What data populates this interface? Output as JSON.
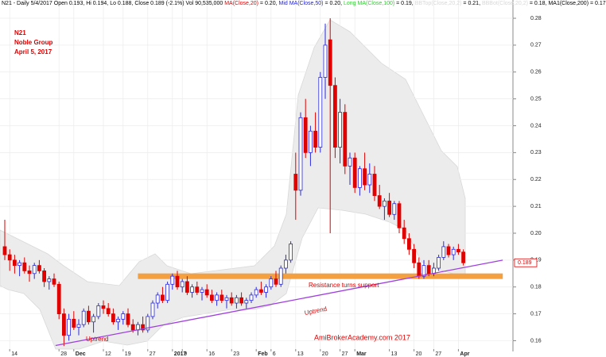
{
  "header": [
    {
      "text": "N21 - Daily 5/4/2017 Open 0.193, Hi 0.194, Lo 0.188, Close 0.189 (-2.1%) Vol 90,535,000 ",
      "color": "#000000"
    },
    {
      "text": "MA(Close,20)",
      "color": "#e00000"
    },
    {
      "text": " = 0.20, ",
      "color": "#000000"
    },
    {
      "text": "Mid MA(Close,50)",
      "color": "#2020e0"
    },
    {
      "text": " = 0.20, ",
      "color": "#000000"
    },
    {
      "text": "Long MA(Close,100)",
      "color": "#33cc33"
    },
    {
      "text": " = 0.19, ",
      "color": "#000000"
    },
    {
      "text": "BBTop(Close,20,2)",
      "color": "#d8d8d8"
    },
    {
      "text": " = 0.21, ",
      "color": "#000000"
    },
    {
      "text": "BBBot(Close,20,2)",
      "color": "#d8d8d8"
    },
    {
      "text": " = 0.18, MA1(Close,200) = 0.17",
      "color": "#000000"
    }
  ],
  "chart_data": {
    "type": "candlestick",
    "title": "N21",
    "subtitle": [
      "Noble Group",
      "April 5, 2017"
    ],
    "categories": [
      null,
      "14",
      null,
      null,
      null,
      null,
      null,
      null,
      null,
      null,
      null,
      "28",
      null,
      null,
      "Dec",
      null,
      null,
      null,
      null,
      null,
      "12",
      null,
      null,
      null,
      "19",
      null,
      null,
      null,
      null,
      "27",
      null,
      null,
      null,
      null,
      "2017",
      null,
      "9",
      null,
      null,
      null,
      null,
      "16",
      null,
      null,
      null,
      null,
      "23",
      null,
      null,
      null,
      null,
      "Feb",
      null,
      null,
      "6",
      null,
      null,
      null,
      null,
      "13",
      null,
      null,
      null,
      null,
      "20",
      null,
      null,
      null,
      "27",
      null,
      null,
      "Mar",
      null,
      null,
      null,
      null,
      null,
      null,
      "13",
      null,
      null,
      null,
      null,
      "20",
      null,
      null,
      null,
      "27",
      null,
      null,
      null,
      null,
      "Apr",
      null
    ],
    "ohlc": [
      [
        0.195,
        0.205,
        0.19,
        0.192
      ],
      [
        0.192,
        0.194,
        0.186,
        0.19
      ],
      [
        0.19,
        0.192,
        0.185,
        0.188
      ],
      [
        0.188,
        0.19,
        0.184,
        0.189
      ],
      [
        0.189,
        0.191,
        0.185,
        0.186
      ],
      [
        0.186,
        0.188,
        0.182,
        0.185
      ],
      [
        0.185,
        0.189,
        0.183,
        0.188
      ],
      [
        0.188,
        0.19,
        0.185,
        0.186
      ],
      [
        0.186,
        0.187,
        0.18,
        0.182
      ],
      [
        0.182,
        0.184,
        0.179,
        0.183
      ],
      [
        0.183,
        0.185,
        0.18,
        0.181
      ],
      [
        0.181,
        0.182,
        0.168,
        0.17
      ],
      [
        0.17,
        0.172,
        0.158,
        0.162
      ],
      [
        0.162,
        0.17,
        0.16,
        0.168
      ],
      [
        0.168,
        0.171,
        0.164,
        0.165
      ],
      [
        0.165,
        0.168,
        0.162,
        0.166
      ],
      [
        0.166,
        0.172,
        0.165,
        0.171
      ],
      [
        0.171,
        0.173,
        0.166,
        0.167
      ],
      [
        0.167,
        0.17,
        0.163,
        0.169
      ],
      [
        0.169,
        0.174,
        0.168,
        0.173
      ],
      [
        0.173,
        0.175,
        0.17,
        0.172
      ],
      [
        0.172,
        0.174,
        0.169,
        0.17
      ],
      [
        0.17,
        0.172,
        0.166,
        0.167
      ],
      [
        0.167,
        0.169,
        0.164,
        0.168
      ],
      [
        0.168,
        0.171,
        0.166,
        0.17
      ],
      [
        0.17,
        0.172,
        0.165,
        0.166
      ],
      [
        0.166,
        0.168,
        0.163,
        0.164
      ],
      [
        0.164,
        0.167,
        0.162,
        0.166
      ],
      [
        0.166,
        0.169,
        0.163,
        0.164
      ],
      [
        0.164,
        0.17,
        0.163,
        0.169
      ],
      [
        0.169,
        0.175,
        0.168,
        0.174
      ],
      [
        0.174,
        0.178,
        0.172,
        0.177
      ],
      [
        0.177,
        0.18,
        0.174,
        0.175
      ],
      [
        0.175,
        0.182,
        0.174,
        0.181
      ],
      [
        0.181,
        0.185,
        0.179,
        0.184
      ],
      [
        0.184,
        0.186,
        0.179,
        0.18
      ],
      [
        0.18,
        0.183,
        0.178,
        0.182
      ],
      [
        0.182,
        0.184,
        0.177,
        0.178
      ],
      [
        0.178,
        0.181,
        0.176,
        0.18
      ],
      [
        0.18,
        0.182,
        0.177,
        0.178
      ],
      [
        0.178,
        0.18,
        0.175,
        0.179
      ],
      [
        0.179,
        0.181,
        0.176,
        0.177
      ],
      [
        0.177,
        0.179,
        0.174,
        0.175
      ],
      [
        0.175,
        0.178,
        0.173,
        0.177
      ],
      [
        0.177,
        0.179,
        0.174,
        0.175
      ],
      [
        0.175,
        0.177,
        0.172,
        0.176
      ],
      [
        0.176,
        0.178,
        0.173,
        0.174
      ],
      [
        0.174,
        0.177,
        0.172,
        0.176
      ],
      [
        0.176,
        0.178,
        0.173,
        0.174
      ],
      [
        0.174,
        0.176,
        0.172,
        0.175
      ],
      [
        0.175,
        0.178,
        0.174,
        0.177
      ],
      [
        0.177,
        0.18,
        0.176,
        0.179
      ],
      [
        0.179,
        0.182,
        0.177,
        0.178
      ],
      [
        0.178,
        0.181,
        0.176,
        0.18
      ],
      [
        0.18,
        0.184,
        0.179,
        0.183
      ],
      [
        0.183,
        0.186,
        0.18,
        0.181
      ],
      [
        0.181,
        0.188,
        0.18,
        0.187
      ],
      [
        0.187,
        0.192,
        0.185,
        0.19
      ],
      [
        0.19,
        0.197,
        0.189,
        0.196
      ],
      [
        0.222,
        0.23,
        0.205,
        0.216
      ],
      [
        0.216,
        0.245,
        0.214,
        0.243
      ],
      [
        0.243,
        0.25,
        0.228,
        0.23
      ],
      [
        0.23,
        0.24,
        0.225,
        0.238
      ],
      [
        0.238,
        0.245,
        0.23,
        0.232
      ],
      [
        0.232,
        0.26,
        0.23,
        0.258
      ],
      [
        0.258,
        0.278,
        0.25,
        0.27
      ],
      [
        0.272,
        0.28,
        0.2,
        0.255
      ],
      [
        0.255,
        0.258,
        0.228,
        0.232
      ],
      [
        0.232,
        0.25,
        0.226,
        0.245
      ],
      [
        0.245,
        0.248,
        0.222,
        0.225
      ],
      [
        0.225,
        0.23,
        0.218,
        0.228
      ],
      [
        0.228,
        0.23,
        0.215,
        0.217
      ],
      [
        0.217,
        0.225,
        0.214,
        0.224
      ],
      [
        0.224,
        0.23,
        0.216,
        0.218
      ],
      [
        0.218,
        0.226,
        0.215,
        0.222
      ],
      [
        0.222,
        0.225,
        0.212,
        0.214
      ],
      [
        0.214,
        0.218,
        0.209,
        0.21
      ],
      [
        0.21,
        0.213,
        0.205,
        0.212
      ],
      [
        0.212,
        0.215,
        0.206,
        0.207
      ],
      [
        0.207,
        0.212,
        0.205,
        0.211
      ],
      [
        0.211,
        0.212,
        0.2,
        0.202
      ],
      [
        0.202,
        0.205,
        0.196,
        0.198
      ],
      [
        0.198,
        0.2,
        0.192,
        0.194
      ],
      [
        0.194,
        0.196,
        0.187,
        0.189
      ],
      [
        0.189,
        0.191,
        0.183,
        0.184
      ],
      [
        0.184,
        0.19,
        0.183,
        0.188
      ],
      [
        0.188,
        0.19,
        0.184,
        0.185
      ],
      [
        0.185,
        0.189,
        0.184,
        0.187
      ],
      [
        0.187,
        0.192,
        0.186,
        0.191
      ],
      [
        0.191,
        0.197,
        0.19,
        0.195
      ],
      [
        0.195,
        0.196,
        0.191,
        0.192
      ],
      [
        0.192,
        0.195,
        0.19,
        0.194
      ],
      [
        0.194,
        0.196,
        0.192,
        0.193
      ],
      [
        0.193,
        0.194,
        0.188,
        0.189
      ]
    ],
    "up_color": "#2a2ae0",
    "down_color": "#e00000",
    "ylim": [
      0.156,
      0.2868
    ],
    "yticks": [
      0.16,
      0.17,
      0.18,
      0.19,
      {
        "value": 0.2,
        "label": "0.20"
      },
      0.21,
      0.22,
      0.23,
      0.24,
      0.25,
      0.26,
      0.27,
      0.28
    ],
    "grid": true,
    "resistance": {
      "value": 0.184,
      "from": 27,
      "to": 101,
      "color": "#f4a040",
      "label": "Resistance turns support"
    },
    "trendline": {
      "points": [
        [
          10.3,
          0.1582
        ],
        [
          101,
          0.19
        ]
      ],
      "color": "#a040e0",
      "labels": [
        "Uptrend",
        "Uptrend"
      ]
    },
    "watermark": "AmiBrokerAcademy.com 2017"
  }
}
